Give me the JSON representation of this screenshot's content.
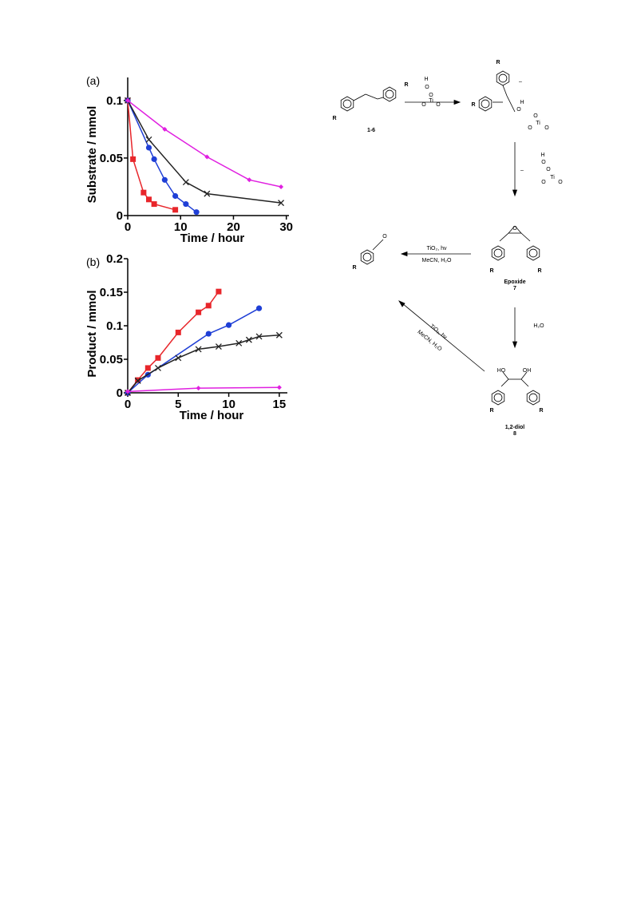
{
  "chart_data": [
    {
      "type": "line",
      "panel_label": "(a)",
      "ylabel": "Substrate / mmol",
      "xlabel": "Time / hour",
      "xlim": [
        0,
        30.5
      ],
      "ylim": [
        0,
        0.12
      ],
      "xticks": [
        0,
        10,
        20,
        30
      ],
      "yticks": [
        0,
        0.05,
        0.1
      ],
      "series": [
        {
          "color": "#e8262b",
          "marker": "square",
          "x": [
            0,
            1,
            3,
            4,
            5,
            9
          ],
          "values": [
            0.1,
            0.049,
            0.02,
            0.014,
            0.01,
            0.005
          ]
        },
        {
          "color": "#1f3fd6",
          "marker": "circle",
          "x": [
            0,
            4,
            5,
            7,
            9,
            11,
            13
          ],
          "values": [
            0.1,
            0.059,
            0.049,
            0.031,
            0.017,
            0.01,
            0.003
          ]
        },
        {
          "color": "#222222",
          "marker": "x",
          "x": [
            0,
            4,
            11,
            15,
            29
          ],
          "values": [
            0.1,
            0.066,
            0.029,
            0.019,
            0.011
          ]
        },
        {
          "color": "#e020e0",
          "marker": "diamond",
          "x": [
            0,
            7,
            15,
            23,
            29
          ],
          "values": [
            0.1,
            0.075,
            0.051,
            0.031,
            0.025
          ]
        }
      ]
    },
    {
      "type": "line",
      "panel_label": "(b)",
      "ylabel": "Product / mmol",
      "xlabel": "Time / hour",
      "xlim": [
        0,
        15.8
      ],
      "ylim": [
        0,
        0.2
      ],
      "xticks": [
        0,
        5,
        10,
        15
      ],
      "yticks": [
        0,
        0.05,
        0.1,
        0.15,
        0.2
      ],
      "series": [
        {
          "color": "#e8262b",
          "marker": "square",
          "x": [
            0,
            1,
            2,
            3,
            5,
            7,
            8,
            9
          ],
          "values": [
            0,
            0.019,
            0.037,
            0.052,
            0.09,
            0.12,
            0.13,
            0.151
          ]
        },
        {
          "color": "#1f3fd6",
          "marker": "circle",
          "x": [
            0,
            2,
            8,
            10,
            13
          ],
          "values": [
            0,
            0.027,
            0.088,
            0.101,
            0.126
          ]
        },
        {
          "color": "#222222",
          "marker": "x",
          "x": [
            0,
            1,
            3,
            5,
            7,
            9,
            11,
            12,
            13,
            15
          ],
          "values": [
            0,
            0.018,
            0.037,
            0.052,
            0.065,
            0.069,
            0.074,
            0.079,
            0.084,
            0.086
          ]
        },
        {
          "color": "#e020e0",
          "marker": "diamond",
          "x": [
            0,
            7,
            15
          ],
          "values": [
            0.002,
            0.007,
            0.008
          ]
        }
      ]
    }
  ],
  "scheme": {
    "substituent": "R",
    "start_label": "1-6",
    "epoxide_name": "Epoxide",
    "epoxide_number": "7",
    "diol_name": "1,2-diol",
    "diol_number": "8",
    "photo_reagent": "TiO₂, hv",
    "photo_solvent": "MeCN, H₂O",
    "hydrolysis_reagent": "H₂O",
    "atoms": {
      "H": "H",
      "O": "O",
      "Ti": "Ti",
      "OH": "HO",
      "HO": "OH",
      "minus": "–"
    }
  }
}
